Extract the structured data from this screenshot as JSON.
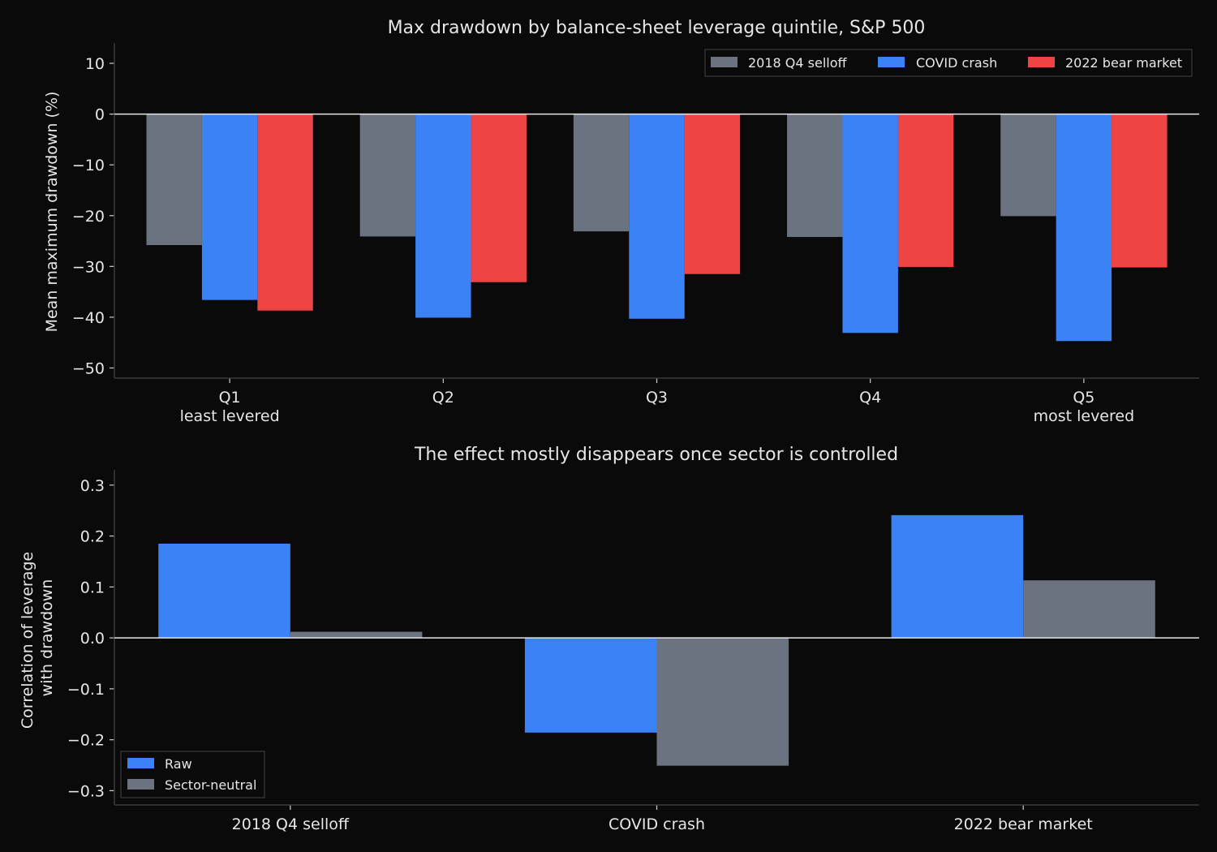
{
  "chart_data": [
    {
      "type": "bar",
      "title": "Max drawdown by balance-sheet leverage quintile, S&P 500",
      "xlabel": "",
      "ylabel": "Mean maximum drawdown (%)",
      "categories": [
        [
          "Q1",
          "least levered"
        ],
        [
          "Q2"
        ],
        [
          "Q3"
        ],
        [
          "Q4"
        ],
        [
          "Q5",
          "most levered"
        ]
      ],
      "series": [
        {
          "name": "2018 Q4 selloff",
          "color": "#6b7280",
          "values": [
            -25.8,
            -24.1,
            -23.1,
            -24.2,
            -20.1
          ]
        },
        {
          "name": "COVID crash",
          "color": "#3b82f6",
          "values": [
            -36.6,
            -40.1,
            -40.3,
            -43.1,
            -44.7
          ]
        },
        {
          "name": "2022 bear market",
          "color": "#ef4444",
          "values": [
            -38.7,
            -33.1,
            -31.5,
            -30.1,
            -30.2
          ]
        }
      ],
      "ylim": [
        -52,
        14
      ],
      "yticks": [
        10,
        0,
        -10,
        -20,
        -30,
        -40,
        -50
      ],
      "ytick_labels": [
        "10",
        "0",
        "−10",
        "−20",
        "−30",
        "−40",
        "−50"
      ],
      "zero_line": true,
      "grid": false,
      "legend": "top-right"
    },
    {
      "type": "bar",
      "title": "The effect mostly disappears once sector is controlled",
      "xlabel": "",
      "ylabel": [
        "Correlation of leverage",
        "with drawdown"
      ],
      "categories": [
        [
          "2018 Q4 selloff"
        ],
        [
          "COVID crash"
        ],
        [
          "2022 bear market"
        ]
      ],
      "series": [
        {
          "name": "Raw",
          "color": "#3b82f6",
          "values": [
            0.185,
            -0.186,
            0.241
          ]
        },
        {
          "name": "Sector-neutral",
          "color": "#6b7280",
          "values": [
            0.012,
            -0.251,
            0.113
          ]
        }
      ],
      "ylim": [
        -0.328,
        0.33
      ],
      "yticks": [
        0.3,
        0.2,
        0.1,
        0.0,
        -0.1,
        -0.2,
        -0.3
      ],
      "ytick_labels": [
        "0.3",
        "0.2",
        "0.1",
        "0.0",
        "−0.1",
        "−0.2",
        "−0.3"
      ],
      "zero_line": true,
      "grid": false,
      "legend": "bottom-left"
    }
  ]
}
